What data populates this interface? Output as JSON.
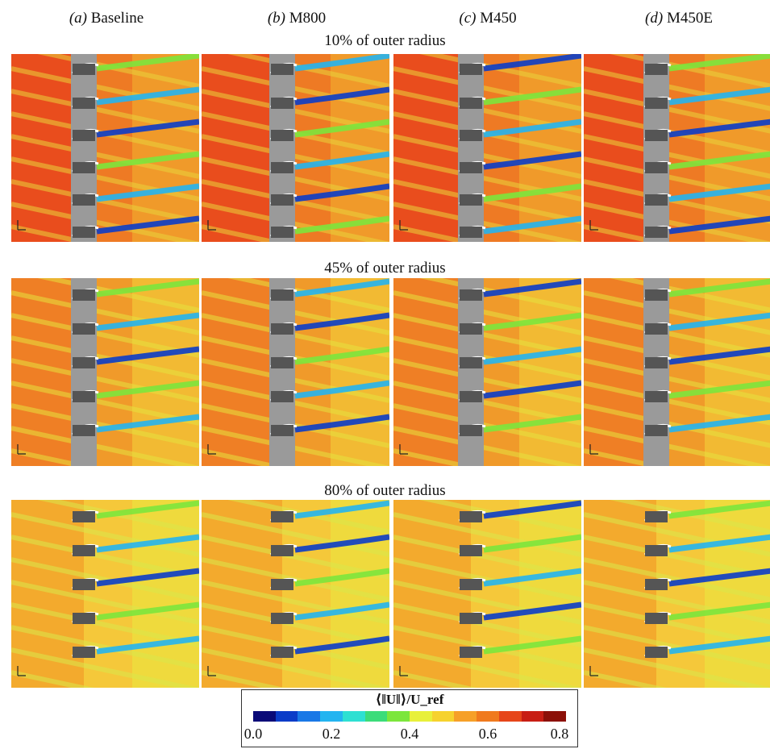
{
  "columns": [
    {
      "tag": "(a)",
      "name": "Baseline"
    },
    {
      "tag": "(b)",
      "name": "M800"
    },
    {
      "tag": "(c)",
      "name": "M450"
    },
    {
      "tag": "(d)",
      "name": "M450E"
    }
  ],
  "rows": [
    {
      "title": "10% of outer radius"
    },
    {
      "title": "45% of outer radius"
    },
    {
      "title": "80% of outer radius"
    }
  ],
  "colorbar": {
    "title": "⟨‖U‖⟩/U_ref",
    "ticks": [
      "0.0",
      "0.2",
      "0.4",
      "0.6",
      "0.8"
    ],
    "colors": [
      "#0a0a78",
      "#0b3cc8",
      "#1a78e6",
      "#23b4f0",
      "#2ee0d2",
      "#3cdc7a",
      "#7ce63c",
      "#e8f03a",
      "#f6d22e",
      "#f6a028",
      "#f07a1e",
      "#e6461a",
      "#c81e14",
      "#8c1008"
    ],
    "range": [
      0.0,
      0.8
    ]
  }
}
